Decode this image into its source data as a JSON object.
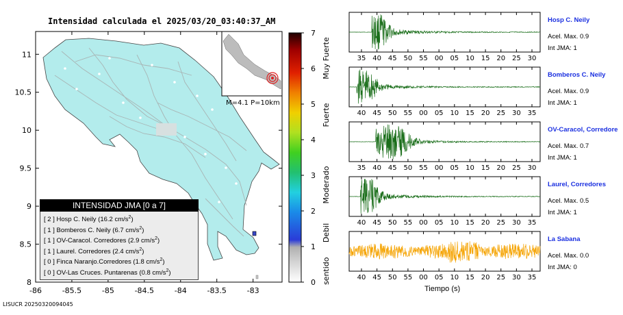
{
  "header": {
    "title": "Intensidad calculada el 2025/03/20_03:40:37_AM"
  },
  "footer": {
    "code": "LISUCR 20250320094045"
  },
  "map": {
    "x_ticks": [
      "-86",
      "-85.5",
      "-85",
      "-84.5",
      "-84",
      "-83.5",
      "-83"
    ],
    "y_ticks": [
      "11",
      "10.5",
      "10",
      "9.5",
      "9",
      "8.5",
      "8"
    ],
    "land_color": "#b3ecec",
    "inset_caption": "M=4.1 P=10km"
  },
  "legend": {
    "title": "INTENSIDAD JMA [0 a 7]",
    "rows": [
      {
        "jma": "[ 2 ]",
        "station": "Hosp C. Neily",
        "value": "(16.2 cm/s",
        "sup": "2",
        "close": ")"
      },
      {
        "jma": "[ 1 ]",
        "station": "Bomberos C. Neily",
        "value": "(6.7 cm/s",
        "sup": "2",
        "close": ")"
      },
      {
        "jma": "[ 1 ]",
        "station": "OV-Caracol. Corredores",
        "value": "(2.9 cm/s",
        "sup": "2",
        "close": ")"
      },
      {
        "jma": "[ 1 ]",
        "station": "Laurel. Corredores",
        "value": "(2.4 cm/s",
        "sup": "2",
        "close": ")"
      },
      {
        "jma": "[ 0 ]",
        "station": "Finca Naranjo.Corredores",
        "value": "(1.8 cm/s",
        "sup": "2",
        "close": ")"
      },
      {
        "jma": "[ 0 ]",
        "station": "OV-Las Cruces. Puntarenas",
        "value": "(0.8 cm/s",
        "sup": "2",
        "close": ")"
      }
    ]
  },
  "colorbar": {
    "ticks": [
      "7",
      "6",
      "5",
      "4",
      "3",
      "2",
      "1",
      "0"
    ],
    "categories": [
      "Muy Fuerte",
      "Fuerte",
      "Moderado",
      "Debil",
      "No sentido"
    ]
  },
  "traces": [
    {
      "name": "Hosp C. Neily",
      "acel": "Acel. Max. 0.9",
      "jma": "Int JMA: 1",
      "color": "#1a6e1a",
      "ticks": [
        "35",
        "40",
        "45",
        "50",
        "55",
        "00",
        "05",
        "10",
        "15",
        "20",
        "25",
        "30"
      ]
    },
    {
      "name": "Bomberos C. Neily",
      "acel": "Acel. Max. 0.9",
      "jma": "Int JMA: 1",
      "color": "#1a6e1a",
      "ticks": [
        "40",
        "45",
        "50",
        "55",
        "00",
        "05",
        "10",
        "15",
        "20",
        "25",
        "30",
        "35"
      ]
    },
    {
      "name": "OV-Caracol, Corredore",
      "acel": "Acel. Max. 0.7",
      "jma": "Int JMA: 1",
      "color": "#1a6e1a",
      "ticks": [
        "35",
        "40",
        "45",
        "50",
        "55",
        "00",
        "05",
        "10",
        "15",
        "20",
        "25",
        "30"
      ]
    },
    {
      "name": "Laurel, Corredores",
      "acel": "Acel. Max. 0.5",
      "jma": "Int JMA: 1",
      "color": "#1a6e1a",
      "ticks": [
        "40",
        "45",
        "50",
        "55",
        "00",
        "05",
        "10",
        "15",
        "20",
        "25",
        "30",
        "35"
      ]
    },
    {
      "name": "La Sabana",
      "acel": "Acel. Max. 0.0",
      "jma": "Int JMA: 0",
      "color": "#f5a300",
      "ticks": [
        "40",
        "45",
        "50",
        "55",
        "00",
        "05",
        "10",
        "15",
        "20",
        "25",
        "30",
        "35"
      ]
    }
  ],
  "x_axis_label": "Tiempo (s)",
  "chart_data": [
    {
      "type": "heatmap",
      "title": "Intensidad calculada el 2025/03/20_03:40:37_AM",
      "xlim": [
        -86,
        -82.6
      ],
      "ylim": [
        8,
        11.3
      ],
      "x_ticks": [
        -86,
        -85.5,
        -85,
        -84.5,
        -84,
        -83.5,
        -83
      ],
      "y_ticks": [
        8,
        8.5,
        9,
        9.5,
        10,
        10.5,
        11
      ],
      "magnitude_caption": "M=4.1 P=10km",
      "stations": [
        {
          "name": "Hosp C. Neily",
          "jma": 2,
          "pga_cm_s2": 16.2
        },
        {
          "name": "Bomberos C. Neily",
          "jma": 1,
          "pga_cm_s2": 6.7
        },
        {
          "name": "OV-Caracol. Corredores",
          "jma": 1,
          "pga_cm_s2": 2.9
        },
        {
          "name": "Laurel. Corredores",
          "jma": 1,
          "pga_cm_s2": 2.4
        },
        {
          "name": "Finca Naranjo.Corredores",
          "jma": 0,
          "pga_cm_s2": 1.8
        },
        {
          "name": "OV-Las Cruces. Puntarenas",
          "jma": 0,
          "pga_cm_s2": 0.8
        }
      ],
      "colorbar": {
        "range": [
          0,
          7
        ],
        "labels": [
          "No sentido",
          "Debil",
          "Moderado",
          "Fuerte",
          "Muy Fuerte"
        ]
      }
    },
    {
      "type": "line",
      "xlabel": "Tiempo (s)",
      "series": [
        {
          "name": "Hosp C. Neily",
          "acel_max": 0.9,
          "int_jma": 1
        },
        {
          "name": "Bomberos C. Neily",
          "acel_max": 0.9,
          "int_jma": 1
        },
        {
          "name": "OV-Caracol, Corredore",
          "acel_max": 0.7,
          "int_jma": 1
        },
        {
          "name": "Laurel, Corredores",
          "acel_max": 0.5,
          "int_jma": 1
        },
        {
          "name": "La Sabana",
          "acel_max": 0.0,
          "int_jma": 0
        }
      ]
    }
  ]
}
